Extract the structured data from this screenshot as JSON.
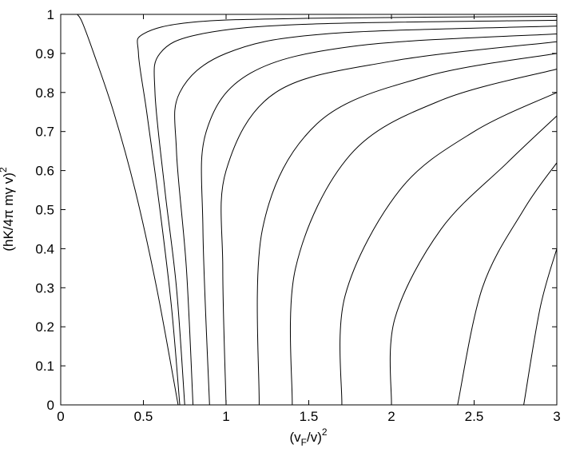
{
  "chart_data": {
    "type": "line",
    "xlabel": [
      "(v",
      "F",
      "/v)",
      "2"
    ],
    "ylabel": [
      "(hK/4π mγ v)",
      "2"
    ],
    "xlim": [
      0,
      3
    ],
    "xticks": [
      0,
      0.5,
      1,
      1.5,
      2,
      2.5,
      3
    ],
    "ylim": [
      0,
      1
    ],
    "yticks": [
      0,
      0.1,
      0.2,
      0.3,
      0.4,
      0.5,
      0.6,
      0.7,
      0.8,
      0.9,
      1
    ],
    "series": [
      {
        "color": "#000000",
        "x": [
          0.1,
          0.13,
          0.2,
          0.32,
          0.45,
          0.58,
          0.71
        ],
        "values": [
          1,
          0.98,
          0.9,
          0.75,
          0.55,
          0.3,
          0
        ]
      },
      {
        "color": "#000000",
        "x": [
          3,
          1.5,
          0.8,
          0.5,
          0.47,
          0.52,
          0.6,
          0.67,
          0.72
        ],
        "values": [
          0.995,
          0.99,
          0.98,
          0.95,
          0.9,
          0.75,
          0.5,
          0.25,
          0
        ]
      },
      {
        "color": "#000000",
        "x": [
          3,
          1.5,
          0.85,
          0.6,
          0.57,
          0.63,
          0.7,
          0.75
        ],
        "values": [
          0.985,
          0.975,
          0.95,
          0.9,
          0.8,
          0.55,
          0.3,
          0
        ]
      },
      {
        "color": "#000000",
        "x": [
          3,
          1.6,
          1.0,
          0.72,
          0.7,
          0.76,
          0.8
        ],
        "values": [
          0.97,
          0.95,
          0.9,
          0.8,
          0.65,
          0.35,
          0
        ]
      },
      {
        "color": "#000000",
        "x": [
          3,
          1.8,
          1.15,
          0.88,
          0.86,
          0.9
        ],
        "values": [
          0.95,
          0.92,
          0.85,
          0.7,
          0.45,
          0
        ]
      },
      {
        "color": "#000000",
        "x": [
          3,
          2.0,
          1.3,
          1.0,
          0.98,
          1.0
        ],
        "values": [
          0.93,
          0.88,
          0.8,
          0.6,
          0.35,
          0
        ]
      },
      {
        "color": "#000000",
        "x": [
          3,
          2.2,
          1.55,
          1.22,
          1.2
        ],
        "values": [
          0.9,
          0.84,
          0.72,
          0.45,
          0
        ]
      },
      {
        "color": "#000000",
        "x": [
          3,
          2.3,
          1.75,
          1.42,
          1.4
        ],
        "values": [
          0.86,
          0.78,
          0.64,
          0.35,
          0
        ]
      },
      {
        "color": "#000000",
        "x": [
          3,
          2.5,
          2.05,
          1.72,
          1.7
        ],
        "values": [
          0.8,
          0.7,
          0.55,
          0.28,
          0
        ]
      },
      {
        "color": "#000000",
        "x": [
          3,
          2.7,
          2.3,
          2.02,
          2.0
        ],
        "values": [
          0.74,
          0.62,
          0.45,
          0.22,
          0
        ]
      },
      {
        "color": "#000000",
        "x": [
          3,
          2.8,
          2.55,
          2.4
        ],
        "values": [
          0.62,
          0.5,
          0.3,
          0
        ]
      },
      {
        "color": "#000000",
        "x": [
          3,
          2.9,
          2.8
        ],
        "values": [
          0.4,
          0.25,
          0
        ]
      }
    ]
  }
}
